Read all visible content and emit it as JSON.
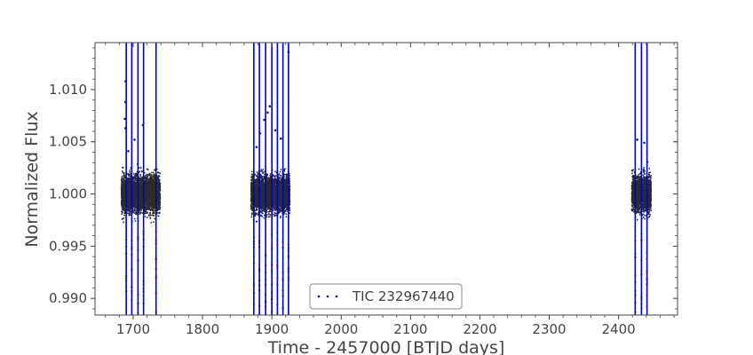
{
  "chart_data": {
    "type": "scatter",
    "title": "",
    "xlabel": "Time - 2457000 [BTJD days]",
    "ylabel": "Normalized Flux",
    "xlim": [
      1645,
      2485
    ],
    "ylim": [
      0.9884,
      1.0145
    ],
    "xticks": [
      1700,
      1800,
      1900,
      2000,
      2100,
      2200,
      2300,
      2400
    ],
    "xtick_labels": [
      "1700",
      "1800",
      "1900",
      "2000",
      "2100",
      "2200",
      "2300",
      "2400"
    ],
    "yticks": [
      0.99,
      0.995,
      1.0,
      1.005,
      1.01
    ],
    "ytick_labels": [
      "0.990",
      "0.995",
      "1.000",
      "1.005",
      "1.010"
    ],
    "grid": false,
    "legend": {
      "position": "bottom-center",
      "entries": [
        "TIC 232967440"
      ]
    },
    "series": [
      {
        "name": "TIC 232967440",
        "marker": "dot",
        "color": "#191970",
        "segments": [
          {
            "start": 1683,
            "end": 1739,
            "median": 1.0,
            "scatter_low": 0.9966,
            "scatter_high": 1.0034
          },
          {
            "start": 1870,
            "end": 1926,
            "median": 1.0,
            "scatter_low": 0.9966,
            "scatter_high": 1.0034
          },
          {
            "start": 2419,
            "end": 2447,
            "median": 1.0,
            "scatter_low": 0.9966,
            "scatter_high": 1.0034
          }
        ],
        "transit_times": [
          1690,
          1698,
          1707,
          1715,
          1733,
          1874,
          1882,
          1891,
          1900,
          1908,
          1916,
          1924,
          2424,
          2433,
          2441
        ],
        "transit_depth_min": 0.9885,
        "outliers": [
          {
            "x": 1689,
            "y": 1.0108
          },
          {
            "x": 1689,
            "y": 1.0088
          },
          {
            "x": 1688,
            "y": 1.0072
          },
          {
            "x": 1689,
            "y": 1.0063
          },
          {
            "x": 1702,
            "y": 1.0052
          },
          {
            "x": 1714,
            "y": 1.0066
          },
          {
            "x": 1693,
            "y": 1.0041
          },
          {
            "x": 1897,
            "y": 1.0084
          },
          {
            "x": 1894,
            "y": 1.0078
          },
          {
            "x": 1889,
            "y": 1.0071
          },
          {
            "x": 1905,
            "y": 1.0061
          },
          {
            "x": 1883,
            "y": 1.0058
          },
          {
            "x": 1913,
            "y": 1.0053
          },
          {
            "x": 1924,
            "y": 1.0136
          },
          {
            "x": 1878,
            "y": 1.0045
          },
          {
            "x": 2427,
            "y": 1.0052
          },
          {
            "x": 2437,
            "y": 1.0049
          }
        ]
      }
    ]
  }
}
